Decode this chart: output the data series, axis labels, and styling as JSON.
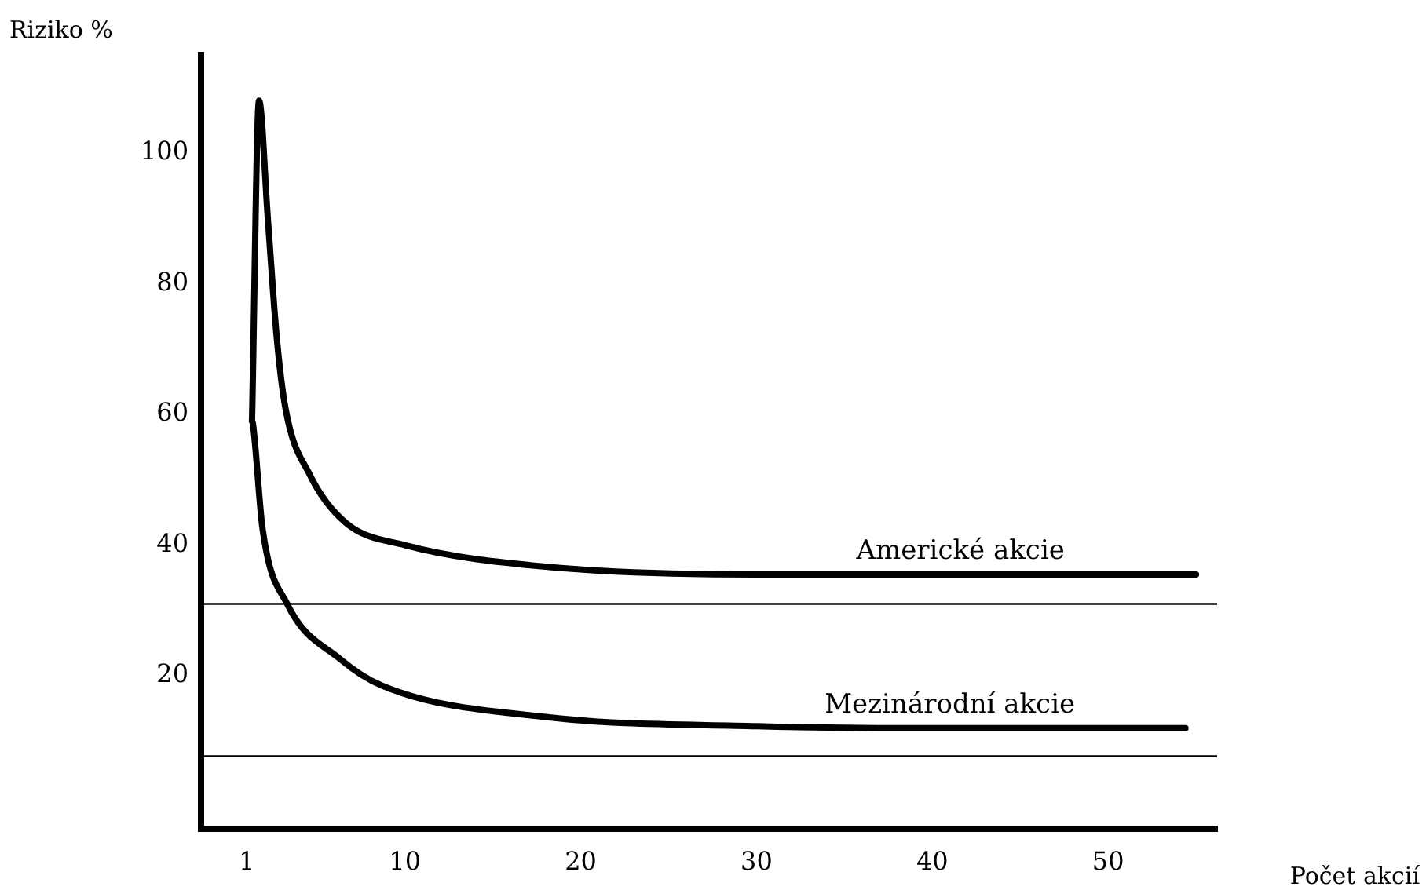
{
  "chart_data": {
    "type": "line",
    "xlabel": "Počet akcií",
    "ylabel": "Riziko %",
    "xlim": [
      -1.6,
      56.2
    ],
    "xticks": [
      1,
      10,
      20,
      30,
      40,
      50
    ],
    "ylim": [
      -3.4,
      115
    ],
    "yticks": [
      20,
      40,
      60,
      80,
      100
    ],
    "grid": false,
    "legend": false,
    "marker": "none",
    "line_style": "solid",
    "series": [
      {
        "color": "#000000",
        "x": [
          1.3,
          1.7,
          2.2,
          2.7,
          3.2,
          4.6,
          6.6,
          10,
          18,
          30,
          40,
          55
        ],
        "values": [
          59,
          108,
          90,
          72,
          61,
          50.7,
          43.5,
          40,
          36.7,
          35.5,
          35.5,
          35.5
        ]
      },
      {
        "color": "#000000",
        "x": [
          1.3,
          1.35,
          1.9,
          3.3,
          6.3,
          8.7,
          18,
          30,
          40,
          54.4
        ],
        "values": [
          59,
          58.6,
          42.5,
          31,
          22.6,
          18.5,
          13.7,
          12.3,
          12,
          12
        ]
      }
    ],
    "ref_lines": [
      {
        "axis": "y",
        "value": 31,
        "color": "#000000"
      },
      {
        "axis": "y",
        "value": 7.7,
        "color": "#000000"
      }
    ],
    "annotations": [
      "Americké akcie",
      "Mezinárodní akcie"
    ]
  }
}
